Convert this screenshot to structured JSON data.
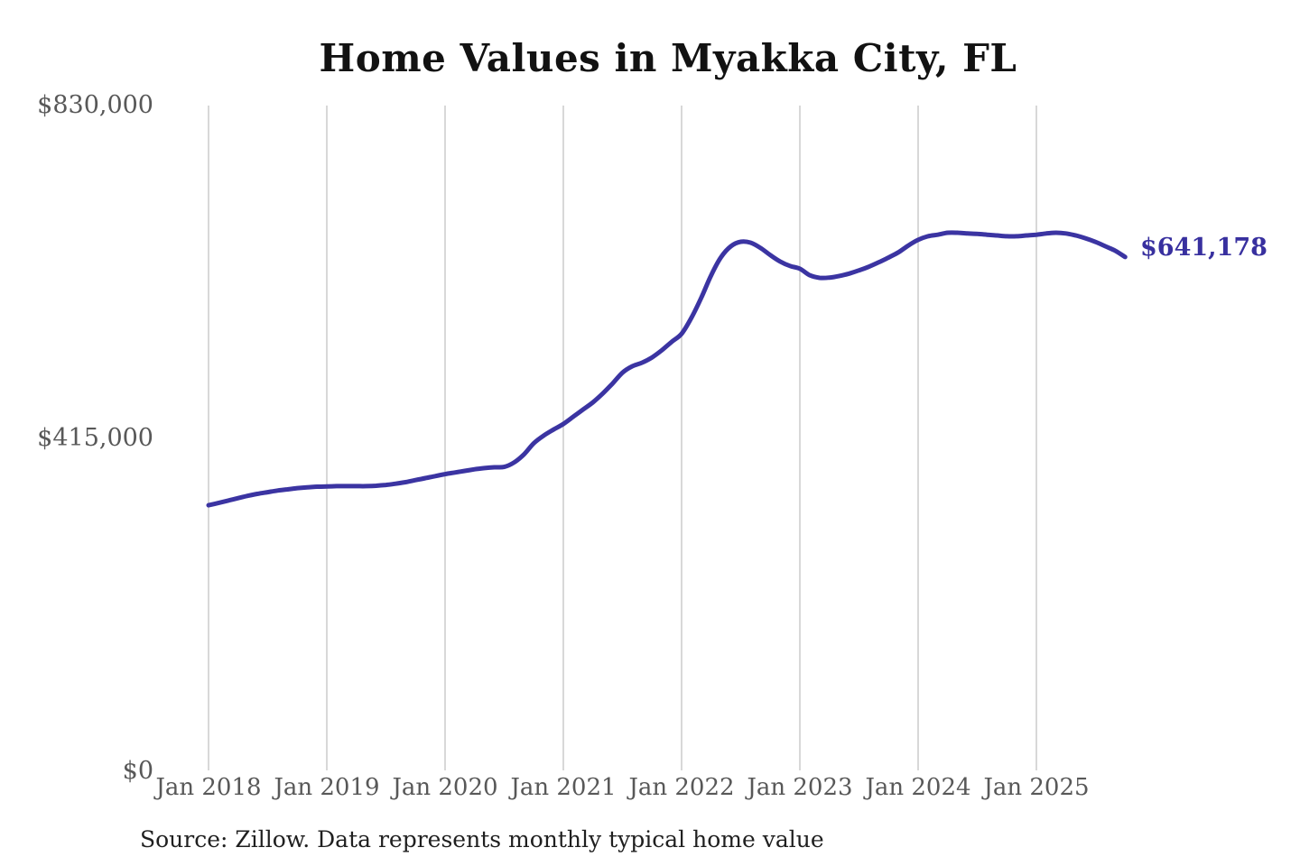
{
  "title": "Home Values in Myakka City, FL",
  "source_note": "Source: Zillow. Data represents monthly typical home value",
  "latest_value_label": "$641,178",
  "colors": {
    "line": "#3b34a2",
    "accent_label": "#38309f",
    "grid": "#cccccc",
    "axis_text": "#585858",
    "title_text": "#121212",
    "background": "#ffffff"
  },
  "chart_data": {
    "type": "line",
    "title": "Home Values in Myakka City, FL",
    "xlabel": "",
    "ylabel": "",
    "x_unit": "month",
    "x_start": "2018-01",
    "x_end": "2025-10",
    "grid": "vertical-only",
    "legend": "none",
    "ylim": [
      0,
      830000
    ],
    "y_tick_values": [
      0,
      415000,
      830000
    ],
    "y_tick_labels": [
      "$0",
      "$415,000",
      "$830,000"
    ],
    "x_tick_labels": [
      "Jan 2018",
      "Jan 2019",
      "Jan 2020",
      "Jan 2021",
      "Jan 2022",
      "Jan 2023",
      "Jan 2024",
      "Jan 2025"
    ],
    "end_label": "$641,178",
    "end_value": 641178,
    "series": [
      {
        "name": "Monthly typical home value",
        "values": [
          331700,
          334500,
          337500,
          340500,
          343500,
          346000,
          348000,
          350000,
          351500,
          353000,
          354000,
          354800,
          355000,
          355500,
          355500,
          355500,
          355500,
          356000,
          357000,
          358500,
          360500,
          363000,
          365500,
          368000,
          370500,
          372500,
          374500,
          376500,
          378000,
          379000,
          379500,
          385000,
          395000,
          409000,
          418500,
          426000,
          433000,
          442000,
          451000,
          460000,
          471000,
          483500,
          497000,
          505000,
          509500,
          516000,
          525000,
          535500,
          545500,
          565500,
          590500,
          618500,
          641000,
          654500,
          660200,
          659000,
          652500,
          643500,
          635500,
          630000,
          626500,
          618500,
          615200,
          615500,
          617500,
          620500,
          624500,
          629000,
          634500,
          640500,
          647000,
          655500,
          662500,
          667000,
          669000,
          671400,
          671400,
          670500,
          670000,
          669000,
          668000,
          667000,
          667000,
          668000,
          669000,
          670500,
          671400,
          670500,
          668000,
          664500,
          660000,
          654500,
          649000,
          641178
        ]
      }
    ]
  }
}
